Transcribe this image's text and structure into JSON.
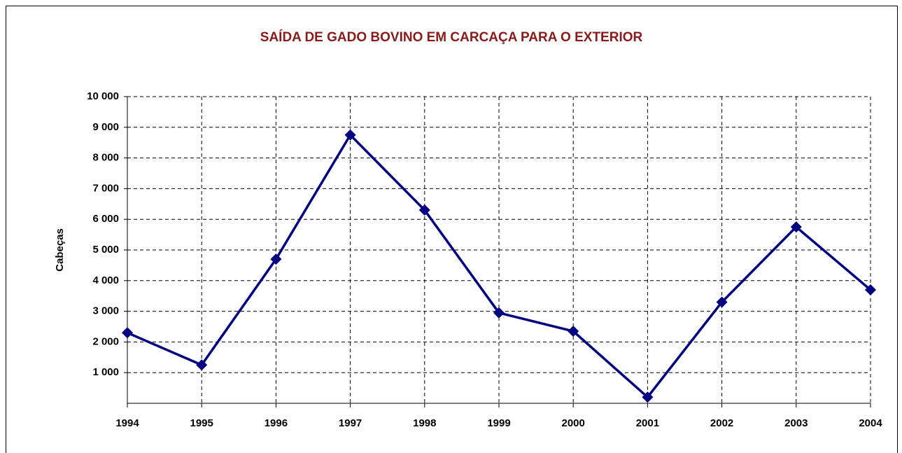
{
  "chart_data": {
    "type": "line",
    "title": "SAÍDA DE GADO BOVINO EM CARCAÇA PARA O EXTERIOR",
    "y_label": "Cabeças",
    "categories": [
      "1994",
      "1995",
      "1996",
      "1997",
      "1998",
      "1999",
      "2000",
      "2001",
      "2002",
      "2003",
      "2004"
    ],
    "series": [
      {
        "name": "Cabeças",
        "color": "#000080",
        "values": [
          2300,
          1250,
          4700,
          8750,
          6300,
          2950,
          2350,
          200,
          3300,
          5750,
          3700
        ]
      }
    ],
    "ylim": [
      0,
      10000
    ],
    "yticks": [
      {
        "value": 1000,
        "label": "1 000"
      },
      {
        "value": 2000,
        "label": "2 000"
      },
      {
        "value": 3000,
        "label": "3 000"
      },
      {
        "value": 4000,
        "label": "4 000"
      },
      {
        "value": 5000,
        "label": "5 000"
      },
      {
        "value": 6000,
        "label": "6 000"
      },
      {
        "value": 7000,
        "label": "7 000"
      },
      {
        "value": 8000,
        "label": "8 000"
      },
      {
        "value": 9000,
        "label": "9 000"
      },
      {
        "value": 10000,
        "label": "10 000"
      }
    ],
    "grid": true
  }
}
